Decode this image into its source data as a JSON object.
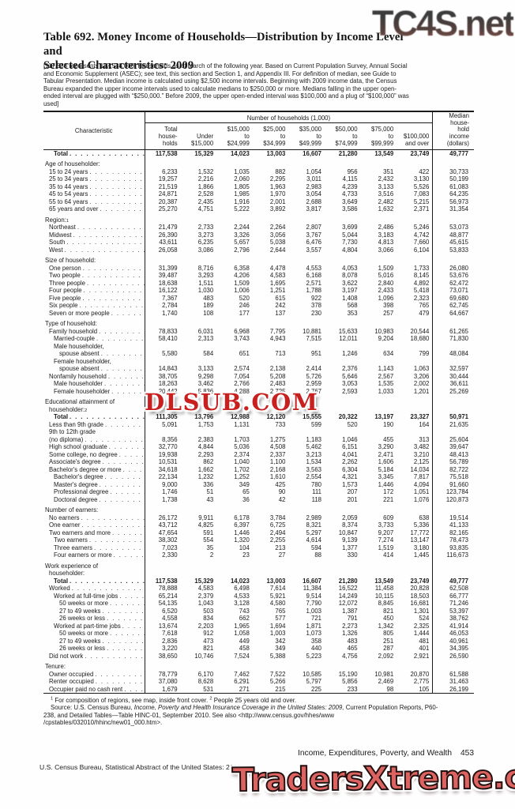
{
  "header": {
    "title_line1": "Table 692. Money Income of Households—Distribution by Income Level and",
    "title_line2": "Selected Characteristics: 2009",
    "note": "[117,538 represents 117,538,000. Households as of March of the following year. Based on Current Population Survey, Annual Social and Economic Supplement (ASEC); see text, this section and Section 1, and Appendix III. For definition of median, see Guide to Tabular Presentation.  Median income is calculated using $2,500 income intervals. Beginning with 2009 income data, the Census Bureau expanded the upper income intervals used to calculate medians to $250,000 or more. Medians falling in the upper open-ended interval are plugged with “$250,000.” Before 2009, the upper open-ended interval was $100,000 and a plug of “$100,000” was used]"
  },
  "table": {
    "characteristic_label": "Characteristic",
    "group_header": "Number of households (1,000)",
    "col_header_lines": [
      [
        "Total",
        "house-",
        "holds"
      ],
      [
        "Under",
        "$15,000"
      ],
      [
        "$15,000",
        "to",
        "$24,999"
      ],
      [
        "$25,000",
        "to",
        "$34,999"
      ],
      [
        "$35,000",
        "to",
        "$49,999"
      ],
      [
        "$50,000",
        "to",
        "$74,999"
      ],
      [
        "$75,000",
        "to",
        "$99,999"
      ],
      [
        "$100,000",
        "and over"
      ]
    ],
    "median_header_lines": [
      "Median",
      "house-",
      "hold",
      "income",
      "(dollars)"
    ],
    "rows": [
      {
        "t": "d",
        "l": "Total",
        "i": 2,
        "b": true,
        "v": [
          "117,538",
          "15,329",
          "14,023",
          "13,003",
          "16,607",
          "21,280",
          "13,549",
          "23,749"
        ],
        "m": "49,777"
      },
      {
        "t": "sec",
        "l": "Age of householder:",
        "g": true
      },
      {
        "t": "d",
        "l": "15 to 24 years",
        "i": 1,
        "v": [
          "6,233",
          "1,532",
          "1,035",
          "882",
          "1,054",
          "956",
          "351",
          "422"
        ],
        "m": "30,733"
      },
      {
        "t": "d",
        "l": "25 to 34 years",
        "i": 1,
        "v": [
          "19,257",
          "2,216",
          "2,060",
          "2,295",
          "3,011",
          "4,115",
          "2,432",
          "3,130"
        ],
        "m": "50,199"
      },
      {
        "t": "d",
        "l": "35 to 44 years",
        "i": 1,
        "v": [
          "21,519",
          "1,866",
          "1,805",
          "1,963",
          "2,983",
          "4,239",
          "3,133",
          "5,526"
        ],
        "m": "61,083"
      },
      {
        "t": "d",
        "l": "45 to 54 years",
        "i": 1,
        "v": [
          "24,871",
          "2,528",
          "1,985",
          "1,970",
          "3,054",
          "4,733",
          "3,516",
          "7,083"
        ],
        "m": "64,235"
      },
      {
        "t": "d",
        "l": "55 to 64 years",
        "i": 1,
        "v": [
          "20,387",
          "2,435",
          "1,916",
          "2,001",
          "2,688",
          "3,649",
          "2,482",
          "5,215"
        ],
        "m": "56,973"
      },
      {
        "t": "d",
        "l": "65 years and over",
        "i": 1,
        "v": [
          "25,270",
          "4,751",
          "5,222",
          "3,892",
          "3,817",
          "3,586",
          "1,632",
          "2,371"
        ],
        "m": "31,354"
      },
      {
        "t": "sec",
        "l": "Region:",
        "sup": "1",
        "g": true
      },
      {
        "t": "d",
        "l": "Northeast",
        "i": 1,
        "v": [
          "21,479",
          "2,733",
          "2,244",
          "2,264",
          "2,807",
          "3,699",
          "2,486",
          "5,246"
        ],
        "m": "53,073"
      },
      {
        "t": "d",
        "l": "Midwest",
        "i": 1,
        "v": [
          "26,390",
          "3,273",
          "3,326",
          "3,056",
          "3,767",
          "5,044",
          "3,183",
          "4,742"
        ],
        "m": "48,877"
      },
      {
        "t": "d",
        "l": "South",
        "i": 1,
        "v": [
          "43,611",
          "6,235",
          "5,657",
          "5,038",
          "6,476",
          "7,730",
          "4,813",
          "7,660"
        ],
        "m": "45,615"
      },
      {
        "t": "d",
        "l": "West",
        "i": 1,
        "v": [
          "26,058",
          "3,086",
          "2,796",
          "2,644",
          "3,557",
          "4,804",
          "3,066",
          "6,104"
        ],
        "m": "53,833"
      },
      {
        "t": "sec",
        "l": "Size of household:",
        "g": true
      },
      {
        "t": "d",
        "l": "One person",
        "i": 1,
        "v": [
          "31,399",
          "8,716",
          "6,358",
          "4,478",
          "4,553",
          "4,053",
          "1,509",
          "1,733"
        ],
        "m": "26,080"
      },
      {
        "t": "d",
        "l": "Two people",
        "i": 1,
        "v": [
          "39,487",
          "3,293",
          "4,206",
          "4,583",
          "6,168",
          "8,078",
          "5,016",
          "8,145"
        ],
        "m": "53,676"
      },
      {
        "t": "d",
        "l": "Three people",
        "i": 1,
        "v": [
          "18,638",
          "1,511",
          "1,509",
          "1,695",
          "2,571",
          "3,622",
          "2,840",
          "4,892"
        ],
        "m": "62,472"
      },
      {
        "t": "d",
        "l": "Four people",
        "i": 1,
        "v": [
          "16,122",
          "1,030",
          "1,006",
          "1,251",
          "1,788",
          "3,197",
          "2,433",
          "5,418"
        ],
        "m": "73,071"
      },
      {
        "t": "d",
        "l": "Five people",
        "i": 1,
        "v": [
          "7,367",
          "483",
          "520",
          "615",
          "922",
          "1,408",
          "1,096",
          "2,323"
        ],
        "m": "69,680"
      },
      {
        "t": "d",
        "l": "Six people",
        "i": 1,
        "v": [
          "2,784",
          "189",
          "246",
          "242",
          "378",
          "568",
          "398",
          "765"
        ],
        "m": "62,745"
      },
      {
        "t": "d",
        "l": "Seven or more people",
        "i": 1,
        "v": [
          "1,740",
          "108",
          "177",
          "137",
          "230",
          "353",
          "257",
          "479"
        ],
        "m": "64,667"
      },
      {
        "t": "sec",
        "l": "Type of household:",
        "g": true
      },
      {
        "t": "d",
        "l": "Family household",
        "i": 1,
        "v": [
          "78,833",
          "6,031",
          "6,968",
          "7,795",
          "10,881",
          "15,633",
          "10,983",
          "20,544"
        ],
        "m": "61,265"
      },
      {
        "t": "d",
        "l": "Married-couple",
        "i": 2,
        "v": [
          "58,410",
          "2,313",
          "3,743",
          "4,943",
          "7,515",
          "12,011",
          "9,204",
          "18,680"
        ],
        "m": "71,830"
      },
      {
        "t": "lbl",
        "l": "Male householder,",
        "i": 2
      },
      {
        "t": "d",
        "l": "spouse absent",
        "i": 3,
        "v": [
          "5,580",
          "584",
          "651",
          "713",
          "951",
          "1,246",
          "634",
          "799"
        ],
        "m": "48,084"
      },
      {
        "t": "lbl",
        "l": "Female householder,",
        "i": 2
      },
      {
        "t": "d",
        "l": "spouse absent",
        "i": 3,
        "v": [
          "14,843",
          "3,133",
          "2,574",
          "2,138",
          "2,414",
          "2,376",
          "1,143",
          "1,063"
        ],
        "m": "32,597"
      },
      {
        "t": "d",
        "l": "Nonfamily household",
        "i": 1,
        "v": [
          "38,705",
          "9,298",
          "7,054",
          "5,208",
          "5,726",
          "5,646",
          "2,567",
          "3,206"
        ],
        "m": "30,444"
      },
      {
        "t": "d",
        "l": "Male householder",
        "i": 2,
        "v": [
          "18,263",
          "3,462",
          "2,766",
          "2,483",
          "2,959",
          "3,053",
          "1,535",
          "2,002"
        ],
        "m": "36,611"
      },
      {
        "t": "d",
        "l": "Female householder",
        "i": 2,
        "v": [
          "20,442",
          "5,836",
          "4,288",
          "2,725",
          "2,767",
          "2,593",
          "1,033",
          "1,201"
        ],
        "m": "25,269"
      },
      {
        "t": "sec",
        "l": "Educational attainment of",
        "g": true
      },
      {
        "t": "sec",
        "l": "householder:",
        "sup": "2",
        "i": 1
      },
      {
        "t": "d",
        "l": "Total",
        "i": 2,
        "b": true,
        "v": [
          "111,305",
          "13,796",
          "12,988",
          "12,120",
          "15,555",
          "20,322",
          "13,197",
          "23,327"
        ],
        "m": "50,971"
      },
      {
        "t": "d",
        "l": "Less than 9th grade",
        "i": 1,
        "v": [
          "5,091",
          "1,753",
          "1,131",
          "733",
          "599",
          "520",
          "190",
          "164"
        ],
        "m": "21,635"
      },
      {
        "t": "lbl",
        "l": "9th to 12th grade",
        "i": 1
      },
      {
        "t": "d",
        "l": "(no diploma)",
        "i": 1,
        "v": [
          "8,356",
          "2,383",
          "1,703",
          "1,275",
          "1,183",
          "1,046",
          "455",
          "313"
        ],
        "m": "25,604"
      },
      {
        "t": "d",
        "l": "High school graduate",
        "i": 1,
        "v": [
          "32,770",
          "4,844",
          "5,036",
          "4,508",
          "5,462",
          "6,151",
          "3,290",
          "3,482"
        ],
        "m": "39,647"
      },
      {
        "t": "d",
        "l": "Some college, no degree",
        "i": 1,
        "v": [
          "19,938",
          "2,293",
          "2,374",
          "2,337",
          "3,213",
          "4,041",
          "2,471",
          "3,210"
        ],
        "m": "48,413"
      },
      {
        "t": "d",
        "l": "Associate's degree",
        "i": 1,
        "v": [
          "10,531",
          "862",
          "1,040",
          "1,100",
          "1,534",
          "2,262",
          "1,606",
          "2,125"
        ],
        "m": "56,789"
      },
      {
        "t": "d",
        "l": "Bachelor's degree or more",
        "i": 1,
        "v": [
          "34,618",
          "1,662",
          "1,702",
          "2,168",
          "3,563",
          "6,304",
          "5,184",
          "14,034"
        ],
        "m": "82,722"
      },
      {
        "t": "d",
        "l": "Bachelor's degree",
        "i": 2,
        "v": [
          "22,134",
          "1,232",
          "1,252",
          "1,610",
          "2,554",
          "4,321",
          "3,345",
          "7,817"
        ],
        "m": "75,518"
      },
      {
        "t": "d",
        "l": "Master's degree",
        "i": 2,
        "v": [
          "9,000",
          "336",
          "349",
          "425",
          "780",
          "1,573",
          "1,446",
          "4,094"
        ],
        "m": "91,660"
      },
      {
        "t": "d",
        "l": "Professional degree",
        "i": 2,
        "v": [
          "1,746",
          "51",
          "65",
          "90",
          "111",
          "207",
          "172",
          "1,051"
        ],
        "m": "123,784"
      },
      {
        "t": "d",
        "l": "Doctoral degree",
        "i": 2,
        "v": [
          "1,738",
          "43",
          "36",
          "42",
          "118",
          "201",
          "221",
          "1,076"
        ],
        "m": "120,873"
      },
      {
        "t": "sec",
        "l": "Number of earners:",
        "g": true
      },
      {
        "t": "d",
        "l": "No earners",
        "i": 1,
        "v": [
          "26,172",
          "9,911",
          "6,178",
          "3,784",
          "2,989",
          "2,059",
          "609",
          "638"
        ],
        "m": "19,514"
      },
      {
        "t": "d",
        "l": "One earner",
        "i": 1,
        "v": [
          "43,712",
          "4,825",
          "6,397",
          "6,725",
          "8,321",
          "8,374",
          "3,733",
          "5,336"
        ],
        "m": "41,133"
      },
      {
        "t": "d",
        "l": "Two earners and more",
        "i": 1,
        "v": [
          "47,654",
          "591",
          "1,446",
          "2,494",
          "5,297",
          "10,847",
          "9,207",
          "17,772"
        ],
        "m": "82,165"
      },
      {
        "t": "d",
        "l": "Two earners",
        "i": 2,
        "v": [
          "38,302",
          "554",
          "1,320",
          "2,255",
          "4,614",
          "9,139",
          "7,274",
          "13,147"
        ],
        "m": "78,473"
      },
      {
        "t": "d",
        "l": "Three earners",
        "i": 2,
        "v": [
          "7,023",
          "35",
          "104",
          "213",
          "594",
          "1,377",
          "1,519",
          "3,180"
        ],
        "m": "93,835"
      },
      {
        "t": "d",
        "l": "Four earners or more",
        "i": 2,
        "v": [
          "2,330",
          "2",
          "23",
          "27",
          "88",
          "330",
          "414",
          "1,445"
        ],
        "m": "116,673"
      },
      {
        "t": "sec",
        "l": "Work experience of",
        "g": true
      },
      {
        "t": "sec",
        "l": "householder:",
        "i": 1
      },
      {
        "t": "d",
        "l": "Total",
        "i": 2,
        "b": true,
        "v": [
          "117,538",
          "15,329",
          "14,023",
          "13,003",
          "16,607",
          "21,280",
          "13,549",
          "23,749"
        ],
        "m": "49,777"
      },
      {
        "t": "d",
        "l": "Worked",
        "i": 1,
        "v": [
          "78,888",
          "4,583",
          "6,498",
          "7,614",
          "11,384",
          "16,522",
          "11,458",
          "20,828"
        ],
        "m": "62,508"
      },
      {
        "t": "d",
        "l": "Worked at full-time jobs",
        "i": 2,
        "v": [
          "65,214",
          "2,379",
          "4,533",
          "5,921",
          "9,514",
          "14,249",
          "10,115",
          "18,503"
        ],
        "m": "66,777"
      },
      {
        "t": "d",
        "l": "50 weeks or more",
        "i": 3,
        "v": [
          "54,135",
          "1,043",
          "3,128",
          "4,580",
          "7,790",
          "12,072",
          "8,845",
          "16,681"
        ],
        "m": "71,246"
      },
      {
        "t": "d",
        "l": "27 to 49 weeks",
        "i": 3,
        "v": [
          "6,520",
          "503",
          "743",
          "765",
          "1,003",
          "1,387",
          "821",
          "1,301"
        ],
        "m": "53,397"
      },
      {
        "t": "d",
        "l": "26 weeks or less",
        "i": 3,
        "v": [
          "4,558",
          "834",
          "662",
          "577",
          "721",
          "791",
          "450",
          "524"
        ],
        "m": "38,762"
      },
      {
        "t": "d",
        "l": "Worked at part-time jobs",
        "i": 2,
        "v": [
          "13,674",
          "2,203",
          "1,965",
          "1,694",
          "1,871",
          "2,273",
          "1,342",
          "2,325"
        ],
        "m": "41,914"
      },
      {
        "t": "d",
        "l": "50 weeks or more",
        "i": 3,
        "v": [
          "7,618",
          "912",
          "1,058",
          "1,003",
          "1,073",
          "1,326",
          "805",
          "1,444"
        ],
        "m": "46,053"
      },
      {
        "t": "d",
        "l": "27 to 49 weeks",
        "i": 3,
        "v": [
          "2,836",
          "473",
          "449",
          "342",
          "358",
          "483",
          "251",
          "481"
        ],
        "m": "40,961"
      },
      {
        "t": "d",
        "l": "26 weeks or less",
        "i": 3,
        "v": [
          "3,220",
          "821",
          "458",
          "349",
          "440",
          "465",
          "287",
          "401"
        ],
        "m": "34,395"
      },
      {
        "t": "d",
        "l": "Did not work",
        "i": 1,
        "v": [
          "38,650",
          "10,746",
          "7,524",
          "5,388",
          "5,223",
          "4,756",
          "2,092",
          "2,921"
        ],
        "m": "26,590"
      },
      {
        "t": "sec",
        "l": "Tenure:",
        "g": true
      },
      {
        "t": "d",
        "l": "Owner occupied",
        "i": 1,
        "v": [
          "78,779",
          "6,170",
          "7,462",
          "7,522",
          "10,585",
          "15,190",
          "10,981",
          "20,870"
        ],
        "m": "61,588"
      },
      {
        "t": "d",
        "l": "Renter occupied",
        "i": 1,
        "v": [
          "37,080",
          "8,628",
          "6,291",
          "5,266",
          "5,797",
          "5,856",
          "2,469",
          "2,775"
        ],
        "m": "31,463"
      },
      {
        "t": "d",
        "l": "Occupier paid no cash rent",
        "i": 1,
        "v": [
          "1,679",
          "531",
          "271",
          "215",
          "225",
          "233",
          "98",
          "105"
        ],
        "m": "26,199"
      }
    ]
  },
  "footnotes": {
    "sup1": "1",
    "fn1": " For composition of regions, see map, inside front cover. ",
    "sup2": "2",
    "fn2": " People 25 years old and over.",
    "source_prefix": "Source: U.S. Census Bureau, ",
    "source_italic": "Income, Poverty and Health Insurance Coverage in the United States: 2009,",
    "source_suffix": " Current Population Reports, P60-238, and Detailed Tables—Table HINC-01, September 2010. See also <http://www.census.gov/hhes/www /cpstables/032010/hhinc/new01_000.htm>."
  },
  "footer": {
    "section_title": "Income, Expenditures, Poverty, and Wealth",
    "page_number": "453",
    "bureau_line": "U.S. Census Bureau, Statistical Abstract of the United States: 2012"
  },
  "watermarks": {
    "top": "TC4S.net",
    "middle": "DLSUB.COM",
    "bottom": "TradersXtreme.com"
  },
  "colors": {
    "watermark_red": "#c81f1f",
    "watermark_bottom_fill": "#dc6360",
    "rule_color": "#1b1b1b"
  }
}
